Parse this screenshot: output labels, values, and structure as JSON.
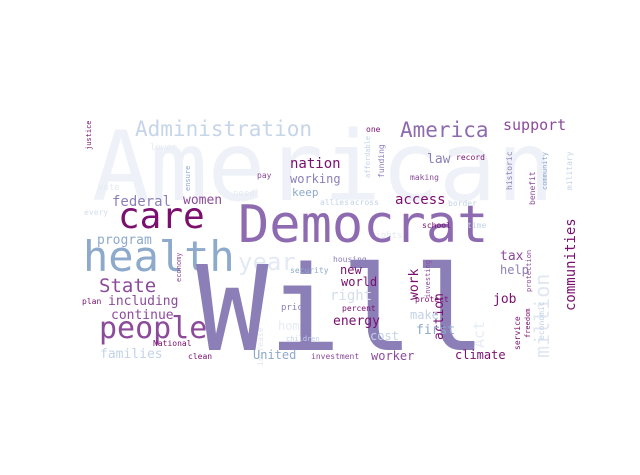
{
  "word_cloud": {
    "background": "#ffffff",
    "palette": {
      "deep_purple": "#7a0f6f",
      "purple": "#8c4a9a",
      "lavender": "#8c7fb8",
      "violet": "#8e6bb0",
      "steel_blue": "#8da9cc",
      "light_blue": "#c3d3e8",
      "pale_blue": "#e8eef6"
    },
    "words": [
      {
        "text": "American"
      },
      {
        "text": "Will"
      },
      {
        "text": "Democrat"
      },
      {
        "text": "health"
      },
      {
        "text": "care"
      },
      {
        "text": "people"
      },
      {
        "text": "Administration"
      },
      {
        "text": "America"
      },
      {
        "text": "year"
      },
      {
        "text": "State"
      },
      {
        "text": "million"
      },
      {
        "text": "support"
      },
      {
        "text": "communities"
      },
      {
        "text": "nation"
      },
      {
        "text": "working"
      },
      {
        "text": "law"
      },
      {
        "text": "keep"
      },
      {
        "text": "women"
      },
      {
        "text": "access"
      },
      {
        "text": "tax"
      },
      {
        "text": "federal"
      },
      {
        "text": "program"
      },
      {
        "text": "including"
      },
      {
        "text": "new"
      },
      {
        "text": "world"
      },
      {
        "text": "right"
      },
      {
        "text": "work"
      },
      {
        "text": "energy"
      },
      {
        "text": "make"
      },
      {
        "text": "help"
      },
      {
        "text": "action"
      },
      {
        "text": "job"
      },
      {
        "text": "continue"
      },
      {
        "text": "first"
      },
      {
        "text": "cost"
      },
      {
        "text": "families"
      },
      {
        "text": "United"
      },
      {
        "text": "worker"
      },
      {
        "text": "climate"
      },
      {
        "text": "one"
      },
      {
        "text": "justice"
      },
      {
        "text": "pay"
      },
      {
        "text": "ensure"
      },
      {
        "text": "record"
      },
      {
        "text": "making"
      },
      {
        "text": "funding"
      },
      {
        "text": "historic"
      },
      {
        "text": "community"
      },
      {
        "text": "military"
      },
      {
        "text": "border"
      },
      {
        "text": "benefit"
      },
      {
        "text": "across"
      },
      {
        "text": "allies"
      },
      {
        "text": "affordable"
      },
      {
        "text": "every"
      },
      {
        "text": "school"
      },
      {
        "text": "time"
      },
      {
        "text": "housing"
      },
      {
        "text": "security"
      },
      {
        "text": "plan"
      },
      {
        "text": "price"
      },
      {
        "text": "percent"
      },
      {
        "text": "protect"
      },
      {
        "text": "National"
      },
      {
        "text": "clean"
      },
      {
        "text": "economy"
      },
      {
        "text": "children"
      },
      {
        "text": "investment"
      },
      {
        "text": "investing"
      },
      {
        "text": "service"
      },
      {
        "text": "freedom"
      },
      {
        "text": "protection"
      },
      {
        "text": "economic"
      },
      {
        "text": "Act"
      },
      {
        "text": "home"
      },
      {
        "text": "increase"
      },
      {
        "text": "lower"
      },
      {
        "text": "vote"
      },
      {
        "text": "rights"
      },
      {
        "text": "need"
      }
    ]
  }
}
